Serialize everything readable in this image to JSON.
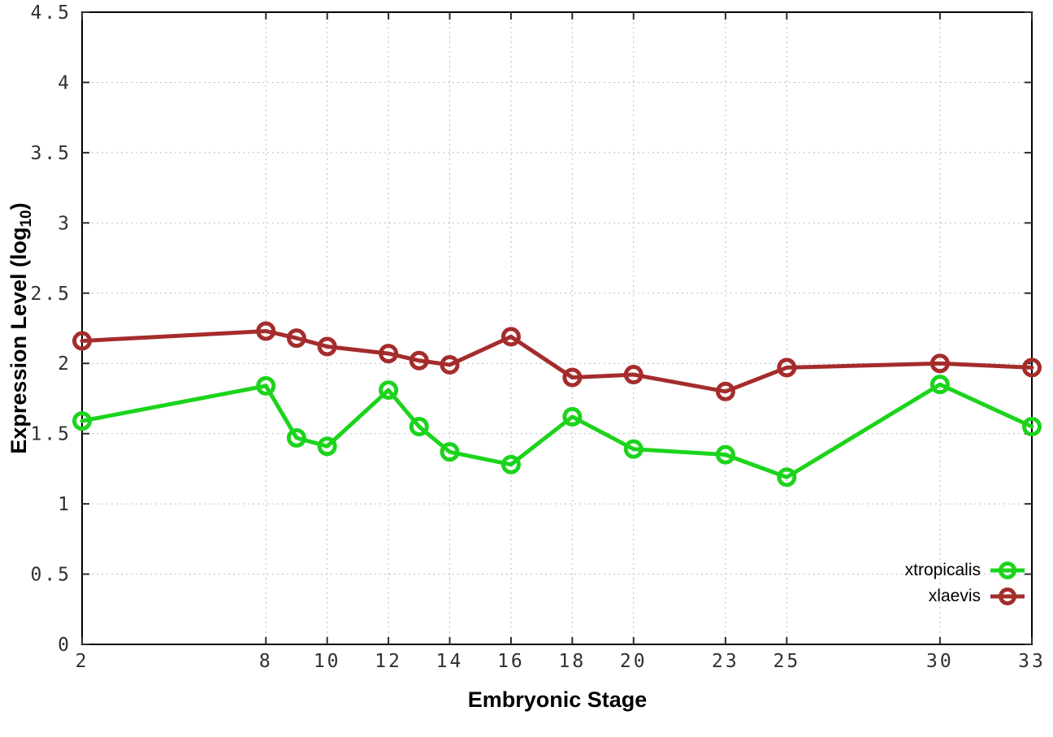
{
  "figure": {
    "background": "#ffffff",
    "xlabel": "Embryonic Stage",
    "ylabel_prefix": "Expression Level (log",
    "ylabel_subscript": "10",
    "ylabel_suffix": ")"
  },
  "chart_data": {
    "type": "line",
    "title": "",
    "xlabel": "Embryonic Stage",
    "ylabel": "Expression Level (log10)",
    "xlim": [
      2,
      33
    ],
    "ylim": [
      0,
      4.5
    ],
    "grid": true,
    "grid_color": "#bdbdbd",
    "axis_color": "#000000",
    "tick_label_color": "#303030",
    "legend_position": "bottom-right-inside",
    "x": [
      2,
      8,
      9,
      10,
      12,
      13,
      14,
      16,
      18,
      20,
      23,
      25,
      30,
      33
    ],
    "xticks": [
      2,
      8,
      10,
      12,
      14,
      16,
      18,
      20,
      23,
      25,
      30,
      33
    ],
    "yticks": [
      0,
      0.5,
      1,
      1.5,
      2,
      2.5,
      3,
      3.5,
      4,
      4.5
    ],
    "series": [
      {
        "name": "xtropicalis",
        "color": "#1bd41b",
        "marker": "open-circle",
        "values": [
          1.59,
          1.84,
          1.47,
          1.41,
          1.81,
          1.55,
          1.37,
          1.28,
          1.62,
          1.39,
          1.35,
          1.19,
          1.85,
          1.55
        ]
      },
      {
        "name": "xlaevis",
        "color": "#a52c2c",
        "marker": "open-circle",
        "values": [
          2.16,
          2.23,
          2.18,
          2.12,
          2.07,
          2.02,
          1.99,
          2.19,
          1.9,
          1.92,
          1.8,
          1.97,
          2.0,
          1.97
        ]
      }
    ]
  }
}
